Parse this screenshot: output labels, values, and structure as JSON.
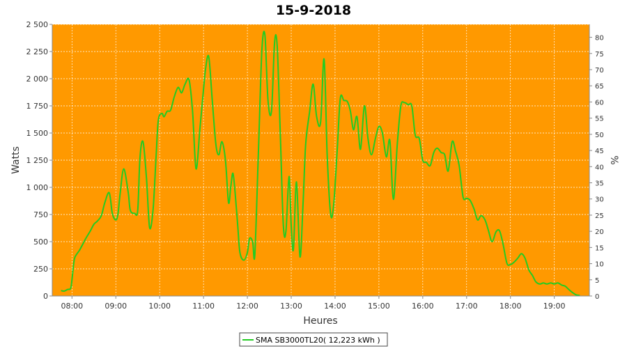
{
  "chart_data": {
    "type": "line",
    "title": "15-9-2018",
    "xlabel": "Heures",
    "ylabel": "Watts",
    "y2label": "%",
    "xlim": [
      7.55,
      19.8
    ],
    "ylim": [
      0,
      2500
    ],
    "y2lim": [
      0,
      84
    ],
    "x_ticks": [
      8,
      9,
      10,
      11,
      12,
      13,
      14,
      15,
      16,
      17,
      18,
      19
    ],
    "x_tick_labels": [
      "08:00",
      "09:00",
      "10:00",
      "11:00",
      "12:00",
      "13:00",
      "14:00",
      "15:00",
      "16:00",
      "17:00",
      "18:00",
      "19:00"
    ],
    "y_ticks": [
      0,
      250,
      500,
      750,
      1000,
      1250,
      1500,
      1750,
      2000,
      2250,
      2500
    ],
    "y_tick_labels": [
      "0",
      "250",
      "500",
      "750",
      "1 000",
      "1 250",
      "1 500",
      "1 750",
      "2 000",
      "2 250",
      "2 500"
    ],
    "y2_ticks": [
      0,
      5,
      10,
      15,
      20,
      25,
      30,
      35,
      40,
      45,
      50,
      55,
      60,
      65,
      70,
      75,
      80
    ],
    "y2_tick_labels": [
      "0",
      "5",
      "10",
      "15",
      "20",
      "25",
      "30",
      "35",
      "40",
      "45",
      "50",
      "55",
      "60",
      "65",
      "70",
      "75",
      "80"
    ],
    "grid": true,
    "legend": {
      "position": "bottom-center"
    },
    "colors": {
      "plot_background": "#FF9900",
      "series": "#22CC22",
      "grid": "#FFFFFF"
    },
    "series": [
      {
        "name": "SMA SB3000TL20( 12,223 kWh )",
        "x": [
          7.75,
          7.82,
          7.9,
          7.97,
          8.0,
          8.05,
          8.1,
          8.17,
          8.25,
          8.33,
          8.42,
          8.5,
          8.58,
          8.67,
          8.75,
          8.85,
          8.92,
          9.0,
          9.05,
          9.1,
          9.18,
          9.28,
          9.33,
          9.43,
          9.5,
          9.55,
          9.62,
          9.7,
          9.77,
          9.85,
          9.92,
          9.97,
          10.05,
          10.1,
          10.17,
          10.25,
          10.33,
          10.42,
          10.5,
          10.58,
          10.67,
          10.75,
          10.83,
          10.92,
          11.0,
          11.05,
          11.12,
          11.2,
          11.28,
          11.35,
          11.42,
          11.5,
          11.57,
          11.62,
          11.67,
          11.72,
          11.78,
          11.83,
          11.92,
          12.0,
          12.05,
          12.12,
          12.17,
          12.25,
          12.33,
          12.4,
          12.47,
          12.55,
          12.62,
          12.68,
          12.75,
          12.82,
          12.88,
          12.95,
          13.0,
          13.05,
          13.12,
          13.2,
          13.27,
          13.33,
          13.42,
          13.5,
          13.58,
          13.67,
          13.75,
          13.82,
          13.9,
          13.97,
          14.05,
          14.12,
          14.2,
          14.28,
          14.35,
          14.42,
          14.5,
          14.58,
          14.67,
          14.75,
          14.83,
          14.92,
          15.0,
          15.08,
          15.17,
          15.25,
          15.33,
          15.42,
          15.5,
          15.58,
          15.67,
          15.75,
          15.83,
          15.92,
          16.0,
          16.08,
          16.17,
          16.25,
          16.33,
          16.42,
          16.5,
          16.58,
          16.67,
          16.75,
          16.83,
          16.92,
          17.0,
          17.08,
          17.17,
          17.25,
          17.33,
          17.42,
          17.5,
          17.58,
          17.67,
          17.75,
          17.83,
          17.92,
          18.0,
          18.08,
          18.17,
          18.25,
          18.33,
          18.42,
          18.5,
          18.58,
          18.67,
          18.75,
          18.83,
          18.92,
          19.0,
          19.08,
          19.17,
          19.25,
          19.33,
          19.42,
          19.5,
          19.58
        ],
        "values": [
          50,
          45,
          60,
          70,
          150,
          330,
          380,
          420,
          480,
          540,
          600,
          660,
          690,
          740,
          860,
          950,
          760,
          700,
          760,
          950,
          1170,
          960,
          790,
          760,
          790,
          1270,
          1420,
          1080,
          630,
          800,
          1300,
          1620,
          1680,
          1650,
          1700,
          1710,
          1830,
          1920,
          1870,
          1950,
          1990,
          1700,
          1170,
          1550,
          1900,
          2100,
          2200,
          1800,
          1400,
          1300,
          1420,
          1250,
          860,
          1000,
          1130,
          950,
          650,
          400,
          330,
          400,
          530,
          500,
          380,
          1300,
          2250,
          2400,
          1800,
          1700,
          2330,
          2300,
          1500,
          650,
          600,
          1100,
          650,
          430,
          1050,
          360,
          850,
          1400,
          1700,
          1950,
          1650,
          1600,
          2180,
          1300,
          750,
          850,
          1350,
          1820,
          1800,
          1790,
          1700,
          1530,
          1650,
          1350,
          1750,
          1450,
          1300,
          1450,
          1560,
          1500,
          1280,
          1430,
          890,
          1400,
          1750,
          1780,
          1760,
          1750,
          1480,
          1450,
          1250,
          1230,
          1200,
          1320,
          1360,
          1320,
          1300,
          1150,
          1420,
          1330,
          1200,
          910,
          900,
          880,
          800,
          700,
          740,
          700,
          600,
          500,
          590,
          600,
          480,
          300,
          290,
          310,
          350,
          390,
          350,
          240,
          190,
          130,
          110,
          120,
          110,
          120,
          110,
          120,
          100,
          90,
          60,
          30,
          10,
          5
        ]
      }
    ]
  }
}
